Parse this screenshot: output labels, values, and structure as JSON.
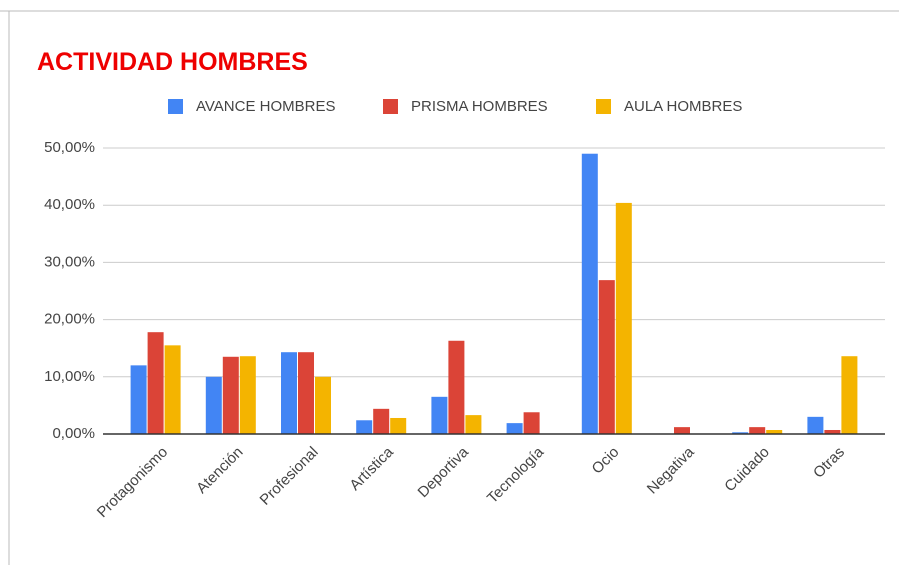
{
  "chart_data": {
    "type": "bar",
    "title": "ACTIVIDAD HOMBRES",
    "categories": [
      "Protagonismo",
      "Atención",
      "Profesional",
      "Artística",
      "Deportiva",
      "Tecnología",
      "Ocio",
      "Negativa",
      "Cuidado",
      "Otras"
    ],
    "series": [
      {
        "name": "AVANCE HOMBRES",
        "color": "#4285f4",
        "values": [
          12.0,
          10.0,
          14.3,
          2.4,
          6.5,
          1.9,
          49.0,
          0,
          0.3,
          3.0
        ]
      },
      {
        "name": "PRISMA HOMBRES",
        "color": "#db4437",
        "values": [
          17.8,
          13.5,
          14.3,
          4.4,
          16.3,
          3.8,
          26.9,
          1.2,
          1.2,
          0.7
        ]
      },
      {
        "name": "AULA HOMBRES",
        "color": "#f4b400",
        "values": [
          15.5,
          13.6,
          10.0,
          2.8,
          3.3,
          0,
          40.4,
          0,
          0.7,
          13.6
        ]
      }
    ],
    "ylim": [
      0,
      50
    ],
    "yticks": [
      {
        "value": 0,
        "label": "0,00%"
      },
      {
        "value": 10,
        "label": "10,00%"
      },
      {
        "value": 20,
        "label": "20,00%"
      },
      {
        "value": 30,
        "label": "30,00%"
      },
      {
        "value": 40,
        "label": "40,00%"
      },
      {
        "value": 50,
        "label": "50,00%"
      }
    ],
    "grid": true,
    "legend": "top"
  }
}
